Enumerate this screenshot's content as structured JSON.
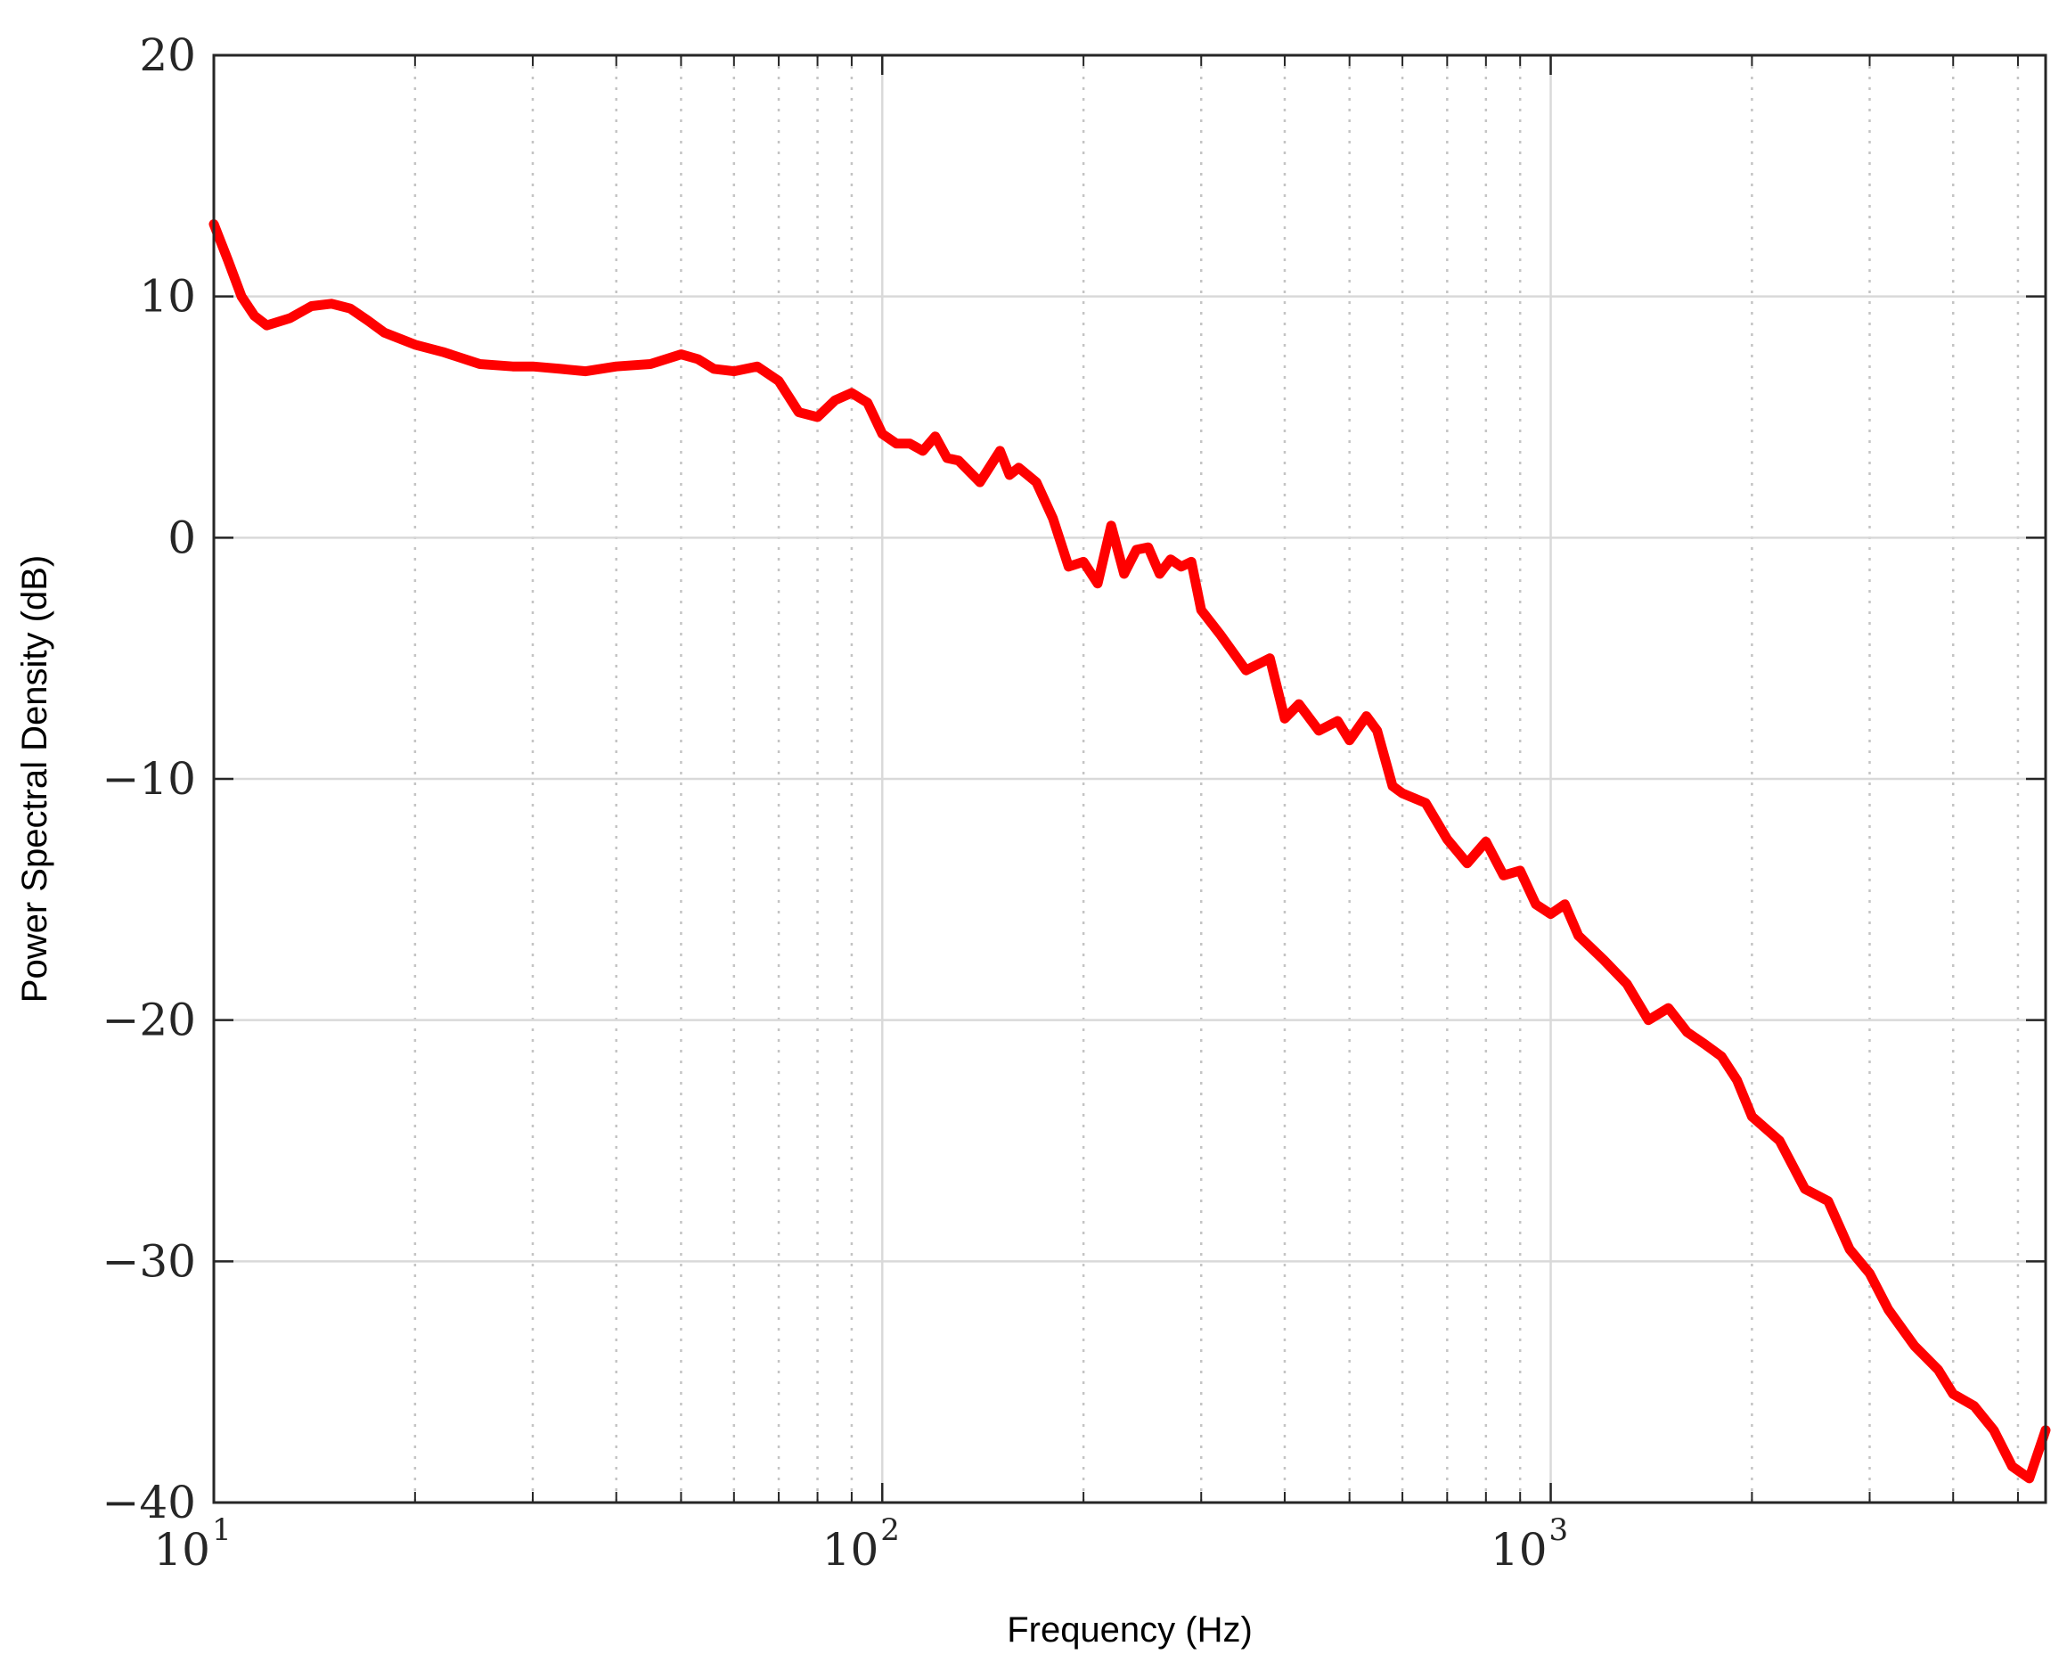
{
  "chart_data": {
    "type": "line",
    "title": "",
    "xlabel": "Frequency (Hz)",
    "ylabel": "Power Spectral Density (dB)",
    "xscale": "log",
    "xlim": [
      10,
      5500
    ],
    "ylim": [
      -40,
      20
    ],
    "x_ticks": [
      {
        "base": "10",
        "exp": "1"
      },
      {
        "base": "10",
        "exp": "2"
      },
      {
        "base": "10",
        "exp": "3"
      }
    ],
    "y_ticks": [
      "20",
      "10",
      "0",
      "−10",
      "−20",
      "−30",
      "−40"
    ],
    "grid": {
      "major": true,
      "minor": true
    },
    "legend": "none",
    "series": [
      {
        "color": "#ff0000",
        "x": [
          10,
          10.5,
          11,
          11.5,
          12,
          13,
          14,
          15,
          16,
          17,
          18,
          20,
          22,
          25,
          28,
          30,
          33,
          36,
          40,
          45,
          50,
          53,
          56,
          60,
          65,
          70,
          75,
          80,
          85,
          90,
          95,
          100,
          105,
          110,
          115,
          120,
          125,
          130,
          140,
          150,
          155,
          160,
          170,
          180,
          190,
          200,
          210,
          220,
          230,
          240,
          250,
          260,
          270,
          280,
          290,
          300,
          320,
          350,
          380,
          400,
          420,
          450,
          480,
          500,
          530,
          550,
          580,
          600,
          650,
          700,
          750,
          800,
          850,
          900,
          950,
          1000,
          1050,
          1100,
          1200,
          1300,
          1400,
          1500,
          1600,
          1700,
          1800,
          1900,
          2000,
          2200,
          2400,
          2600,
          2800,
          3000,
          3200,
          3500,
          3800,
          4000,
          4300,
          4600,
          4900,
          5200,
          5500
        ],
        "y": [
          13,
          11.5,
          10,
          9.2,
          8.8,
          9.1,
          9.6,
          9.7,
          9.5,
          9.0,
          8.5,
          8.0,
          7.7,
          7.2,
          7.1,
          7.1,
          7.0,
          6.9,
          7.1,
          7.2,
          7.6,
          7.4,
          7.0,
          6.9,
          7.1,
          6.5,
          5.2,
          5.0,
          5.7,
          6.0,
          5.6,
          4.3,
          3.9,
          3.9,
          3.6,
          4.2,
          3.3,
          3.2,
          2.3,
          3.6,
          2.6,
          2.9,
          2.3,
          0.8,
          -1.2,
          -1.0,
          -1.9,
          0.5,
          -1.5,
          -0.5,
          -0.4,
          -1.5,
          -0.9,
          -1.2,
          -1.0,
          -3.0,
          -4.0,
          -5.5,
          -5.0,
          -7.5,
          -6.9,
          -8.0,
          -7.6,
          -8.4,
          -7.4,
          -8.0,
          -10.3,
          -10.6,
          -11.0,
          -12.5,
          -13.5,
          -12.6,
          -14.0,
          -13.8,
          -15.2,
          -15.6,
          -15.2,
          -16.5,
          -17.5,
          -18.5,
          -20.0,
          -19.5,
          -20.5,
          -21.0,
          -21.5,
          -22.5,
          -24.0,
          -25.0,
          -27.0,
          -27.5,
          -29.5,
          -30.5,
          -32.0,
          -33.5,
          -34.5,
          -35.5,
          -36.0,
          -37.0,
          -38.5,
          -39.0,
          -37.0
        ]
      }
    ]
  }
}
